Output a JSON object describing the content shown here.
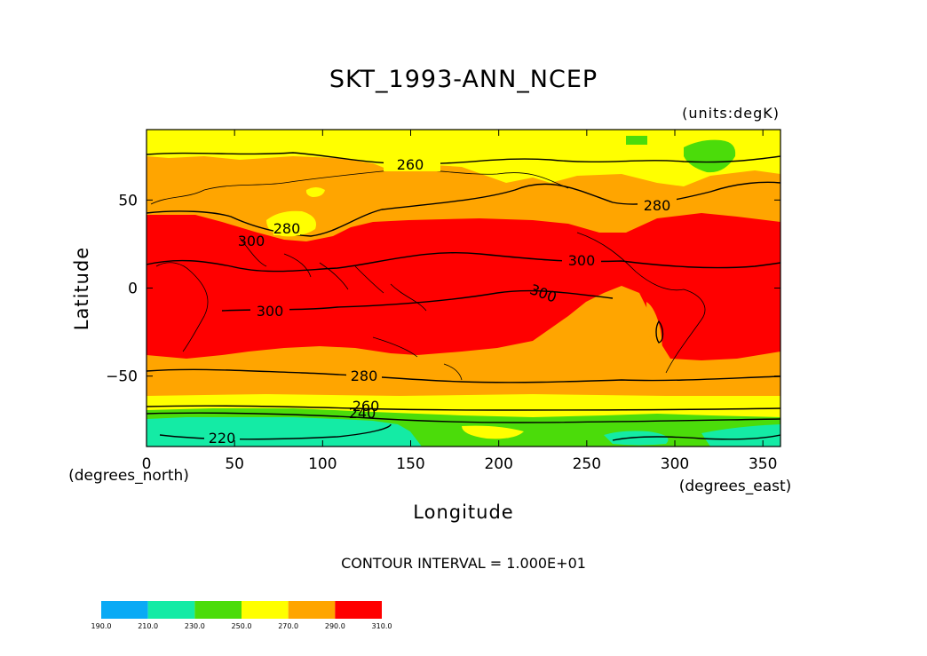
{
  "chart_data": {
    "type": "heatmap",
    "title": "SKT_1993-ANN_NCEP",
    "units": "(units:degK)",
    "xlabel": "Longitude",
    "ylabel": "Latitude",
    "x_unit": "(degrees_north)",
    "x_unit_right": "(degrees_east)",
    "xlim": [
      0,
      360
    ],
    "ylim": [
      -90,
      90
    ],
    "x_ticks": [
      0,
      50,
      100,
      150,
      200,
      250,
      300,
      350
    ],
    "x_tick_labels": [
      "0",
      "50",
      "100",
      "150",
      "200",
      "250",
      "300",
      "350"
    ],
    "y_ticks": [
      50,
      0,
      -50
    ],
    "y_tick_labels": [
      "50",
      "0",
      "−50"
    ],
    "contour_interval": "CONTOUR INTERVAL = 1.000E+01",
    "contour_labels": [
      "260",
      "280",
      "280",
      "300",
      "300",
      "300",
      "300",
      "280",
      "260",
      "240",
      "220"
    ],
    "colorbar": {
      "levels": [
        "190.0",
        "210.0",
        "230.0",
        "250.0",
        "270.0",
        "290.0",
        "310.0"
      ],
      "colors": [
        "#0aaaf5",
        "#14eba5",
        "#4bdc0a",
        "#ffff00",
        "#ffa500",
        "#ff0000"
      ]
    },
    "bands": [
      {
        "range": "210-230",
        "color": "#14eba5"
      },
      {
        "range": "230-250",
        "color": "#4bdc0a"
      },
      {
        "range": "250-270",
        "color": "#ffff00"
      },
      {
        "range": "270-290",
        "color": "#ffa500"
      },
      {
        "range": "290-310",
        "color": "#ff0000"
      }
    ],
    "grid": false
  }
}
